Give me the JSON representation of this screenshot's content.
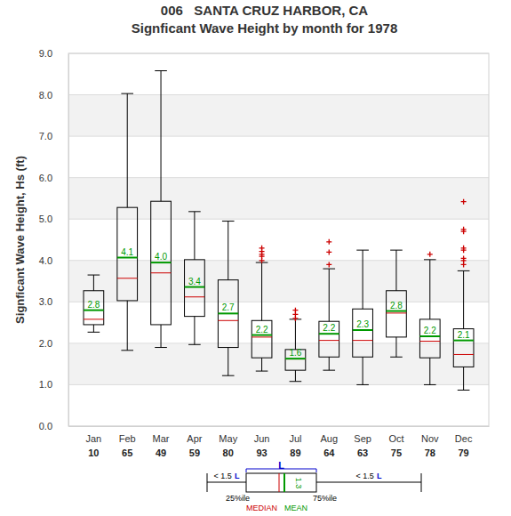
{
  "chart_data": {
    "type": "box",
    "title": "006   SANTA CRUZ HARBOR, CA",
    "subtitle": "Signficant Wave Height by month for 1978",
    "y_label": "Signficant Wave Height, Hs (ft)",
    "categories": [
      "Jan",
      "Feb",
      "Mar",
      "Apr",
      "May",
      "Jun",
      "Jul",
      "Aug",
      "Sep",
      "Oct",
      "Nov",
      "Dec"
    ],
    "counts": [
      10,
      65,
      49,
      59,
      80,
      93,
      89,
      64,
      63,
      75,
      78,
      79
    ],
    "whisker_low": [
      2.27,
      1.83,
      1.9,
      1.97,
      1.22,
      1.33,
      1.08,
      1.35,
      1.0,
      1.67,
      1.0,
      0.87
    ],
    "q1": [
      2.45,
      3.03,
      2.45,
      2.65,
      1.9,
      1.65,
      1.35,
      1.67,
      1.67,
      2.15,
      1.65,
      1.43
    ],
    "median": [
      2.58,
      3.57,
      3.7,
      3.12,
      2.55,
      2.15,
      1.62,
      2.07,
      2.07,
      2.73,
      2.05,
      1.73
    ],
    "q3": [
      3.27,
      5.28,
      5.43,
      4.02,
      3.53,
      2.55,
      1.85,
      2.53,
      2.83,
      3.27,
      2.58,
      2.35
    ],
    "whisker_high": [
      3.65,
      8.03,
      8.58,
      5.18,
      4.95,
      3.95,
      2.58,
      3.8,
      4.25,
      4.25,
      4.02,
      3.75
    ],
    "values": [
      2.8,
      4.07,
      3.95,
      3.36,
      2.72,
      2.2,
      1.63,
      2.23,
      2.32,
      2.78,
      2.17,
      2.07
    ],
    "value_labels": [
      "2.8",
      "4.1",
      "4.0",
      "3.4",
      "2.7",
      "2.2",
      "1.6",
      "2.2",
      "2.3",
      "2.8",
      "2.2",
      "2.1"
    ],
    "outliers": [
      [],
      [],
      [],
      [],
      [],
      [
        4.0,
        4.1,
        4.15,
        4.22,
        4.3
      ],
      [
        2.6,
        2.7,
        2.8
      ],
      [
        3.9,
        4.2,
        4.45
      ],
      [],
      [],
      [
        4.15
      ],
      [
        3.9,
        4.0,
        4.05,
        4.25,
        4.3,
        4.7,
        4.75,
        5.42
      ]
    ],
    "ylim": [
      0,
      9
    ],
    "yticks": [
      {
        "value": 0,
        "label": "0.0"
      },
      {
        "value": 1,
        "label": "1.0"
      },
      {
        "value": 2,
        "label": "2.0"
      },
      {
        "value": 3,
        "label": "3.0"
      },
      {
        "value": 4,
        "label": "4.0"
      },
      {
        "value": 5,
        "label": "5.0"
      },
      {
        "value": 6,
        "label": "6.0"
      },
      {
        "value": 7,
        "label": "7.0"
      },
      {
        "value": 8,
        "label": "8.0"
      },
      {
        "value": 9,
        "label": "9.0"
      }
    ],
    "grid": true,
    "data_labels": true,
    "key": {
      "iqr_label": "L",
      "whisker_label": "< 1.5",
      "q1_label": "25%ile",
      "q3_label": "75%ile",
      "median_label": "MEDIAN",
      "mean_label": "MEAN",
      "mean_value": "1.3"
    }
  }
}
